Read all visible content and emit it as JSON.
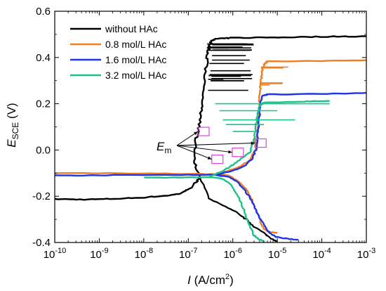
{
  "chart_data": {
    "type": "line",
    "x_scale": "log",
    "xlabel": {
      "main": "I",
      "unit": " (A/cm",
      "sup": "2",
      "close": ")"
    },
    "ylabel": {
      "main": "E",
      "sub": "SCE",
      "unit": " (V)"
    },
    "xlim": [
      1e-10,
      0.001
    ],
    "ylim": [
      -0.4,
      0.6
    ],
    "x_tick_labels": [
      {
        "base": "10",
        "exp": "-10"
      },
      {
        "base": "10",
        "exp": "-9"
      },
      {
        "base": "10",
        "exp": "-8"
      },
      {
        "base": "10",
        "exp": "-7"
      },
      {
        "base": "10",
        "exp": "-6"
      },
      {
        "base": "10",
        "exp": "-5"
      },
      {
        "base": "10",
        "exp": "-4"
      },
      {
        "base": "10",
        "exp": "-3"
      }
    ],
    "y_ticks": [
      -0.4,
      -0.2,
      0.0,
      0.2,
      0.4,
      0.6
    ],
    "y_tick_labels": [
      "-0.4",
      "-0.2",
      "0.0",
      "0.2",
      "0.4",
      "0.6"
    ],
    "grid": false,
    "legend_position": "top-left",
    "annotation": {
      "main": "E",
      "sub": "m"
    },
    "series": [
      {
        "name": "without HAc",
        "color": "#000000",
        "cathodic": [
          [
            1e-10,
            -0.212
          ],
          [
            3e-10,
            -0.214
          ],
          [
            1e-09,
            -0.213
          ],
          [
            3e-09,
            -0.21
          ],
          [
            1e-08,
            -0.205
          ],
          [
            3e-08,
            -0.198
          ],
          [
            6e-08,
            -0.19
          ],
          [
            1e-07,
            -0.172
          ],
          [
            1.5e-07,
            -0.14
          ],
          [
            1.8e-07,
            -0.12
          ]
        ],
        "anodic": [
          [
            1.8e-07,
            -0.12
          ],
          [
            1.4e-07,
            -0.05
          ],
          [
            1.5e-07,
            0.05
          ],
          [
            1.8e-07,
            0.12
          ],
          [
            2e-07,
            0.2
          ],
          [
            2.3e-07,
            0.3
          ],
          [
            2.6e-07,
            0.38
          ],
          [
            2.8e-07,
            0.43
          ],
          [
            3e-07,
            0.45
          ],
          [
            3.3e-07,
            0.47
          ],
          [
            4e-07,
            0.48
          ],
          [
            1e-06,
            0.485
          ],
          [
            1e-05,
            0.487
          ],
          [
            0.0001,
            0.49
          ],
          [
            0.001,
            0.492
          ]
        ],
        "cathodic_branch": [
          [
            1.8e-07,
            -0.12
          ],
          [
            3e-07,
            -0.21
          ],
          [
            6e-07,
            -0.24
          ],
          [
            1.2e-06,
            -0.27
          ],
          [
            2e-06,
            -0.3
          ],
          [
            3e-06,
            -0.33
          ],
          [
            5e-06,
            -0.36
          ],
          [
            7e-06,
            -0.38
          ],
          [
            1e-05,
            -0.395
          ]
        ]
      },
      {
        "name": "0.8 mol/L HAc",
        "color": "#f07f22",
        "cathodic": [
          [
            1e-10,
            -0.1
          ],
          [
            1e-09,
            -0.1
          ],
          [
            1e-08,
            -0.101
          ],
          [
            1e-07,
            -0.103
          ],
          [
            4e-07,
            -0.105
          ],
          [
            8e-07,
            -0.11
          ],
          [
            1.2e-06,
            -0.13
          ],
          [
            1.8e-06,
            -0.16
          ],
          [
            2.5e-06,
            -0.2
          ],
          [
            3.2e-06,
            -0.25
          ],
          [
            4e-06,
            -0.3
          ],
          [
            5e-06,
            -0.34
          ],
          [
            6.5e-06,
            -0.355
          ],
          [
            1e-05,
            -0.358
          ]
        ],
        "anodic": [
          [
            4e-07,
            -0.105
          ],
          [
            8e-07,
            -0.09
          ],
          [
            1.5e-06,
            -0.07
          ],
          [
            2.5e-06,
            -0.04
          ],
          [
            3.2e-06,
            0.0
          ],
          [
            3.5e-06,
            0.07
          ],
          [
            3.8e-06,
            0.15
          ],
          [
            4e-06,
            0.22
          ],
          [
            4.2e-06,
            0.28
          ],
          [
            4.5e-06,
            0.33
          ],
          [
            5e-06,
            0.37
          ],
          [
            6e-06,
            0.383
          ],
          [
            0.0001,
            0.385
          ],
          [
            0.001,
            0.388
          ]
        ]
      },
      {
        "name": "1.6 mol/L HAc",
        "color": "#1f35e8",
        "cathodic": [
          [
            1e-10,
            -0.11
          ],
          [
            1e-09,
            -0.109
          ],
          [
            1e-08,
            -0.108
          ],
          [
            1e-07,
            -0.107
          ],
          [
            4e-07,
            -0.108
          ],
          [
            8e-07,
            -0.115
          ],
          [
            1.2e-06,
            -0.135
          ],
          [
            1.8e-06,
            -0.17
          ],
          [
            2.5e-06,
            -0.21
          ],
          [
            3.3e-06,
            -0.26
          ],
          [
            4.5e-06,
            -0.31
          ],
          [
            6e-06,
            -0.35
          ],
          [
            9e-06,
            -0.375
          ],
          [
            1.8e-05,
            -0.385
          ],
          [
            3e-05,
            -0.388
          ]
        ],
        "anodic": [
          [
            4e-07,
            -0.108
          ],
          [
            1e-06,
            -0.09
          ],
          [
            1.8e-06,
            -0.07
          ],
          [
            2.7e-06,
            -0.04
          ],
          [
            3.3e-06,
            0.0
          ],
          [
            3.6e-06,
            0.07
          ],
          [
            3.9e-06,
            0.14
          ],
          [
            4.2e-06,
            0.2
          ],
          [
            4.6e-06,
            0.235
          ],
          [
            6e-06,
            0.24
          ],
          [
            0.0001,
            0.242
          ],
          [
            0.001,
            0.247
          ]
        ]
      },
      {
        "name": "3.2 mol/L HAc",
        "color": "#18c48c",
        "cathodic": [
          [
            1e-08,
            -0.12
          ],
          [
            1e-07,
            -0.118
          ],
          [
            3e-07,
            -0.117
          ],
          [
            6e-07,
            -0.125
          ],
          [
            9e-07,
            -0.15
          ],
          [
            1.3e-06,
            -0.2
          ],
          [
            1.8e-06,
            -0.26
          ],
          [
            2.3e-06,
            -0.32
          ],
          [
            3e-06,
            -0.37
          ],
          [
            3.8e-06,
            -0.385
          ],
          [
            5e-06,
            -0.395
          ]
        ],
        "anodic": [
          [
            3e-07,
            -0.117
          ],
          [
            6e-07,
            -0.09
          ],
          [
            1e-06,
            -0.065
          ],
          [
            1.6e-06,
            -0.035
          ],
          [
            2.4e-06,
            -0.01
          ],
          [
            3e-06,
            0.04
          ],
          [
            3.3e-06,
            0.1
          ],
          [
            3.6e-06,
            0.15
          ],
          [
            4e-06,
            0.19
          ],
          [
            5e-06,
            0.205
          ],
          [
            4e-05,
            0.21
          ],
          [
            0.00015,
            0.212
          ]
        ]
      }
    ]
  }
}
